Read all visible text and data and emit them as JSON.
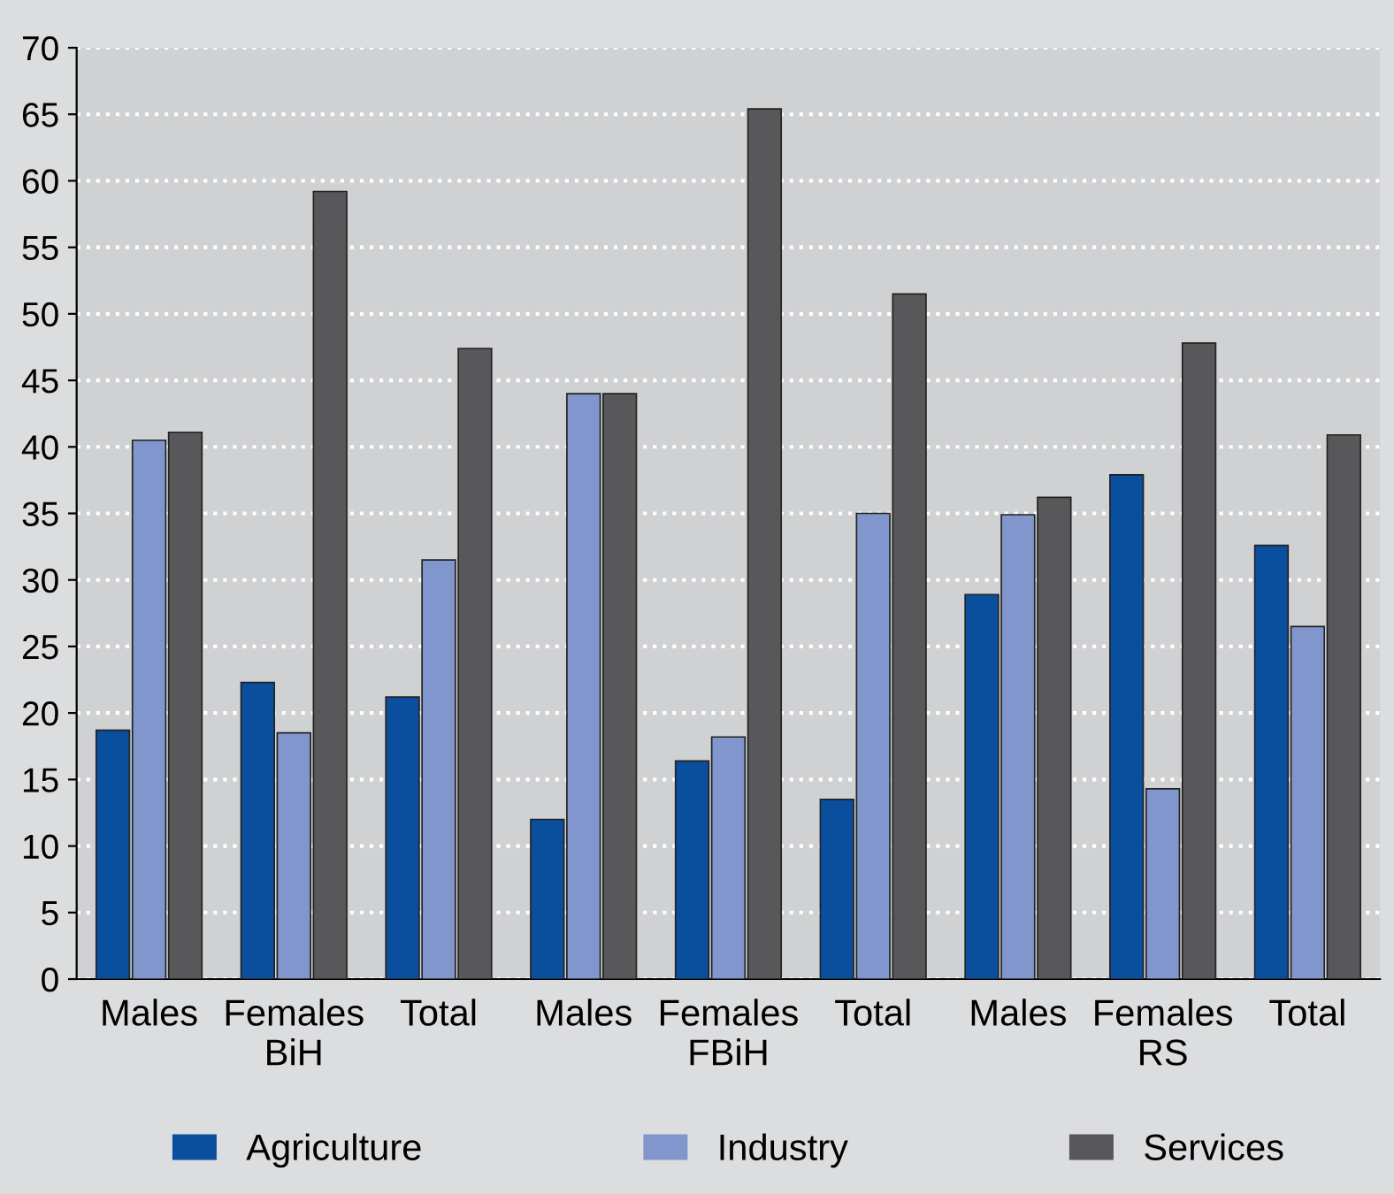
{
  "chart_data": {
    "type": "bar",
    "categories": [
      "Males",
      "Females\nBiH",
      "Total",
      "Males",
      "Females\nFBiH",
      "Total",
      "Males",
      "Females\nRS",
      "Total"
    ],
    "series": [
      {
        "name": "Agriculture",
        "color": "#0a4f9e",
        "values": [
          18.7,
          22.3,
          21.2,
          12.0,
          16.4,
          13.5,
          28.9,
          37.9,
          32.6
        ]
      },
      {
        "name": "Industry",
        "color": "#8096cc",
        "values": [
          40.5,
          18.5,
          31.5,
          44.0,
          18.2,
          35.0,
          34.9,
          14.3,
          26.5
        ]
      },
      {
        "name": "Services",
        "color": "#58585a",
        "values": [
          41.1,
          59.2,
          47.4,
          44.0,
          65.4,
          51.5,
          36.2,
          47.8,
          40.9
        ]
      }
    ],
    "ylim": [
      0,
      70
    ],
    "yticks": [
      0,
      5,
      10,
      15,
      20,
      25,
      30,
      35,
      40,
      45,
      50,
      55,
      60,
      65,
      70
    ],
    "grid": "y",
    "legend": "bottom"
  }
}
